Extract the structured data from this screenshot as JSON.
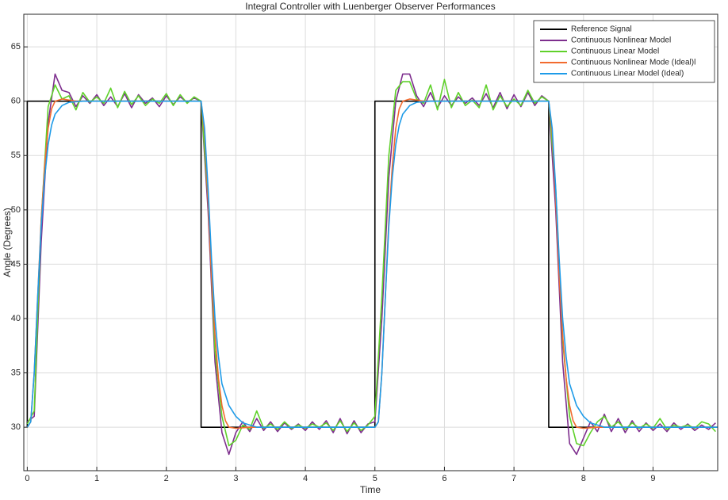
{
  "chart_data": {
    "type": "line",
    "title": "Integral Controller with Luenberger Observer Performances",
    "xlabel": "Time",
    "ylabel": "Angle (Degrees)",
    "xlim": [
      -0.05,
      9.93
    ],
    "ylim": [
      26,
      68
    ],
    "xticks": [
      0,
      1,
      2,
      3,
      4,
      5,
      6,
      7,
      8,
      9
    ],
    "yticks": [
      30,
      35,
      40,
      45,
      50,
      55,
      60,
      65
    ],
    "grid": true,
    "legend": "top-right",
    "series": [
      {
        "name": "Reference Signal",
        "color": "#000000",
        "x": [
          0,
          0,
          2.5,
          2.5,
          5,
          5,
          7.5,
          7.5,
          9.93
        ],
        "values": [
          30,
          60,
          60,
          30,
          30,
          60,
          60,
          30,
          30
        ]
      },
      {
        "name": "Continuous Nonlinear Model",
        "color": "#7e2f8e",
        "x": [
          0,
          0.1,
          0.2,
          0.3,
          0.4,
          0.5,
          0.6,
          0.7,
          0.8,
          0.9,
          1,
          1.1,
          1.2,
          1.3,
          1.4,
          1.5,
          1.6,
          1.7,
          1.8,
          1.9,
          2,
          2.1,
          2.2,
          2.3,
          2.4,
          2.5,
          2.6,
          2.7,
          2.8,
          2.9,
          3,
          3.1,
          3.2,
          3.3,
          3.4,
          3.5,
          3.6,
          3.7,
          3.8,
          3.9,
          4,
          4.1,
          4.2,
          4.3,
          4.4,
          4.5,
          4.6,
          4.7,
          4.8,
          4.9,
          5,
          5.1,
          5.2,
          5.3,
          5.4,
          5.5,
          5.6,
          5.7,
          5.8,
          5.9,
          6,
          6.1,
          6.2,
          6.3,
          6.4,
          6.5,
          6.6,
          6.7,
          6.8,
          6.9,
          7,
          7.1,
          7.2,
          7.3,
          7.4,
          7.5,
          7.6,
          7.7,
          7.8,
          7.9,
          8,
          8.1,
          8.2,
          8.3,
          8.4,
          8.5,
          8.6,
          8.7,
          8.8,
          8.9,
          9,
          9.1,
          9.2,
          9.3,
          9.4,
          9.5,
          9.6,
          9.7,
          9.8,
          9.9
        ],
        "values": [
          30.5,
          31,
          47,
          58,
          62.5,
          61,
          60.8,
          59.5,
          60.5,
          59.8,
          60.6,
          59.6,
          60.4,
          59.5,
          60.7,
          59.4,
          60.6,
          59.8,
          60.3,
          59.5,
          60.5,
          59.7,
          60.4,
          59.9,
          60.3,
          60,
          50,
          36,
          29.5,
          27.5,
          29.5,
          30.5,
          29.6,
          30.8,
          29.7,
          30.5,
          29.6,
          30.4,
          29.8,
          30.3,
          29.7,
          30.5,
          29.8,
          30.6,
          29.5,
          30.8,
          29.4,
          30.6,
          29.5,
          30.3,
          30.5,
          40,
          53,
          60,
          62.5,
          62.5,
          60.5,
          59.5,
          60.8,
          59.4,
          60.5,
          59.6,
          60.4,
          59.8,
          60.3,
          59.6,
          60.7,
          59.4,
          60.8,
          59.3,
          60.6,
          59.5,
          60.8,
          59.6,
          60.5,
          60,
          50,
          36,
          28.5,
          27.5,
          29,
          30.5,
          29.6,
          31.2,
          29.6,
          30.8,
          29.5,
          30.6,
          29.6,
          30.4,
          29.7,
          30.3,
          29.6,
          30.4,
          29.8,
          30.3,
          29.7,
          30.2,
          29.8,
          30.4
        ]
      },
      {
        "name": "Continuous Linear Model",
        "color": "#5fd12a",
        "x": [
          0,
          0.1,
          0.2,
          0.3,
          0.4,
          0.5,
          0.6,
          0.7,
          0.8,
          0.9,
          1,
          1.1,
          1.2,
          1.3,
          1.4,
          1.5,
          1.6,
          1.7,
          1.8,
          1.9,
          2,
          2.1,
          2.2,
          2.3,
          2.4,
          2.5,
          2.6,
          2.7,
          2.8,
          2.9,
          3,
          3.1,
          3.2,
          3.3,
          3.4,
          3.5,
          3.6,
          3.7,
          3.8,
          3.9,
          4,
          4.1,
          4.2,
          4.3,
          4.4,
          4.5,
          4.6,
          4.7,
          4.8,
          4.9,
          5,
          5.1,
          5.2,
          5.3,
          5.4,
          5.5,
          5.6,
          5.7,
          5.8,
          5.9,
          6,
          6.1,
          6.2,
          6.3,
          6.4,
          6.5,
          6.6,
          6.7,
          6.8,
          6.9,
          7,
          7.1,
          7.2,
          7.3,
          7.4,
          7.5,
          7.6,
          7.7,
          7.8,
          7.9,
          8,
          8.1,
          8.2,
          8.3,
          8.4,
          8.5,
          8.6,
          8.7,
          8.8,
          8.9,
          9,
          9.1,
          9.2,
          9.3,
          9.4,
          9.5,
          9.6,
          9.7,
          9.8,
          9.9
        ],
        "values": [
          30.3,
          31.5,
          49,
          59.5,
          61.5,
          60.2,
          60.5,
          59.2,
          60.8,
          59.9,
          60.4,
          59.8,
          61.2,
          59.4,
          60.9,
          59.7,
          60.5,
          59.6,
          60.2,
          59.8,
          60.7,
          59.6,
          60.6,
          59.8,
          60.4,
          60,
          51,
          37,
          31,
          28.3,
          28.8,
          30.2,
          29.8,
          31.5,
          29.9,
          30.3,
          29.8,
          30.5,
          29.9,
          30.2,
          29.9,
          30.3,
          30,
          30.4,
          29.7,
          30.6,
          29.6,
          30.4,
          29.7,
          30.2,
          31,
          42,
          55,
          61,
          61.8,
          61.8,
          60.2,
          59.8,
          61.5,
          59.2,
          62,
          59.4,
          60.8,
          59.6,
          60.1,
          59.4,
          61.5,
          59.2,
          60.5,
          59.5,
          60.2,
          59.6,
          61,
          59.8,
          60.4,
          60,
          52,
          38,
          31,
          28.5,
          28.3,
          29.5,
          30.5,
          31,
          30,
          30.5,
          29.8,
          30.4,
          29.9,
          30.3,
          29.9,
          30.8,
          29.8,
          30.2,
          30,
          30.2,
          29.9,
          30.5,
          30.3,
          29.6
        ]
      },
      {
        "name": "Continuous Nonlinear Mode (Ideal)l",
        "color": "#f26b2f",
        "x": [
          0,
          0.05,
          0.1,
          0.15,
          0.2,
          0.25,
          0.3,
          0.35,
          0.4,
          0.5,
          0.7,
          2.5,
          2.55,
          2.6,
          2.65,
          2.7,
          2.75,
          2.8,
          2.85,
          2.9,
          3,
          3.2,
          5,
          5.05,
          5.1,
          5.15,
          5.2,
          5.25,
          5.3,
          5.35,
          5.4,
          5.5,
          5.7,
          7.5,
          7.55,
          7.6,
          7.65,
          7.7,
          7.75,
          7.8,
          7.85,
          7.9,
          8,
          8.2,
          9.93
        ],
        "values": [
          30,
          30.5,
          35,
          42,
          49,
          54,
          57.5,
          59.3,
          60,
          60.2,
          60,
          60,
          57,
          51,
          44,
          38.5,
          34.5,
          32,
          30.6,
          30,
          29.9,
          30,
          30,
          30.5,
          35,
          42,
          49,
          54,
          57.5,
          59.3,
          60,
          60.2,
          60,
          60,
          57,
          51,
          44,
          38.5,
          34.5,
          32,
          30.6,
          30,
          29.9,
          30,
          30
        ]
      },
      {
        "name": "Continuous Linear Model (Ideal)",
        "color": "#1e9be8",
        "x": [
          0,
          0.05,
          0.1,
          0.15,
          0.2,
          0.25,
          0.3,
          0.35,
          0.4,
          0.5,
          0.6,
          0.8,
          2.5,
          2.55,
          2.6,
          2.65,
          2.7,
          2.75,
          2.8,
          2.9,
          3,
          3.1,
          3.3,
          5,
          5.05,
          5.1,
          5.15,
          5.2,
          5.25,
          5.3,
          5.35,
          5.4,
          5.5,
          5.6,
          5.8,
          7.5,
          7.55,
          7.6,
          7.65,
          7.7,
          7.75,
          7.8,
          7.9,
          8,
          8.1,
          8.3,
          9.93
        ],
        "values": [
          30,
          30.5,
          35,
          42,
          48.5,
          53,
          56,
          57.8,
          58.8,
          59.6,
          59.9,
          60,
          60,
          57.5,
          52,
          45.5,
          40,
          36.5,
          34,
          32,
          31,
          30.4,
          30,
          30,
          30.5,
          35,
          42,
          48.5,
          53,
          56,
          57.8,
          58.8,
          59.6,
          59.9,
          60,
          60,
          57.5,
          52,
          45.5,
          40,
          36.5,
          34,
          32,
          31,
          30.4,
          30,
          30
        ]
      }
    ]
  }
}
